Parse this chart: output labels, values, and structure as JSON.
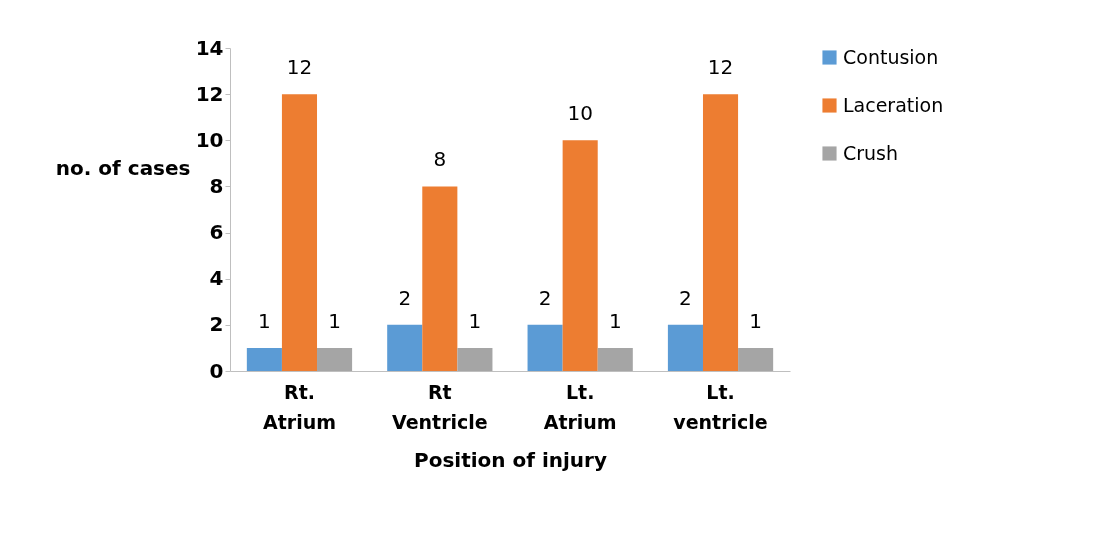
{
  "chart_data": {
    "type": "bar",
    "xlabel": "Position of injury",
    "ylabel": "no. of cases",
    "categories": [
      "Rt. Atrium",
      "Rt Ventricle",
      "Lt. Atrium",
      "Lt. ventricle"
    ],
    "series": [
      {
        "name": "Contusion",
        "color": "#5b9bd5",
        "values": [
          1,
          2,
          2,
          2
        ]
      },
      {
        "name": "Laceration",
        "color": "#ed7d31",
        "values": [
          12,
          8,
          10,
          12
        ]
      },
      {
        "name": "Crush",
        "color": "#a5a5a5",
        "values": [
          1,
          1,
          1,
          1
        ]
      }
    ],
    "ylim": [
      0,
      14
    ],
    "yticks": [
      0,
      2,
      4,
      6,
      8,
      10,
      12,
      14
    ],
    "grid": false,
    "legend": "right",
    "data_labels": true
  }
}
